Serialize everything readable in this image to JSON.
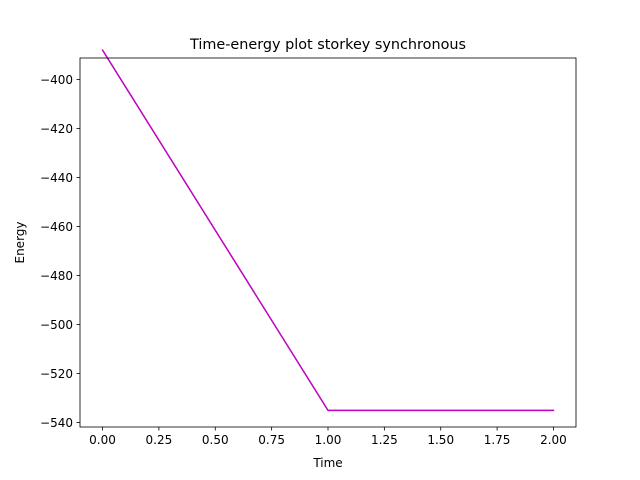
{
  "chart_data": {
    "type": "line",
    "title": "Time-energy plot storkey synchronous",
    "xlabel": "Time",
    "ylabel": "Energy",
    "xlim": [
      -0.1,
      2.1
    ],
    "ylim": [
      -541.8,
      -391.2
    ],
    "xticks": [
      0.0,
      0.25,
      0.5,
      0.75,
      1.0,
      1.25,
      1.5,
      1.75,
      2.0
    ],
    "xtick_labels": [
      "0.00",
      "0.25",
      "0.50",
      "0.75",
      "1.00",
      "1.25",
      "1.50",
      "1.75",
      "2.00"
    ],
    "yticks": [
      -400,
      -420,
      -440,
      -460,
      -480,
      -500,
      -520,
      -540
    ],
    "ytick_labels": [
      "−400",
      "−420",
      "−440",
      "−460",
      "−480",
      "−500",
      "−520",
      "−540"
    ],
    "grid": false,
    "series": [
      {
        "color": "#bf00bf",
        "x": [
          0.0,
          1.0,
          2.0
        ],
        "y": [
          -388,
          -535,
          -535
        ]
      }
    ]
  }
}
